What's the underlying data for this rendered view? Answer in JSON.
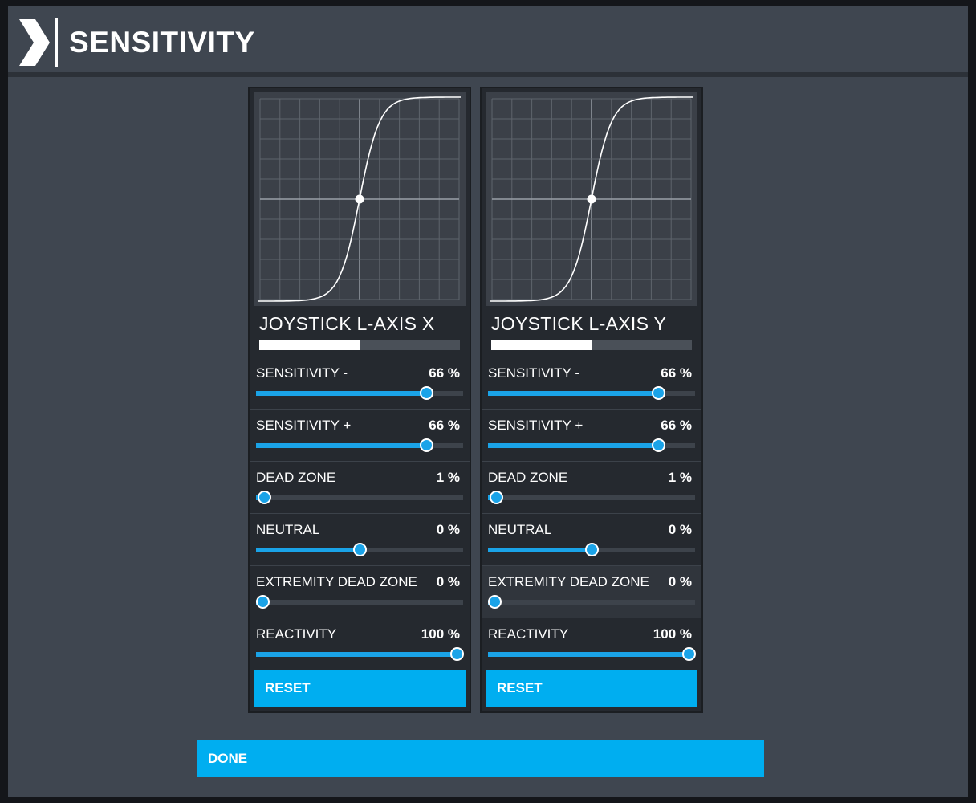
{
  "header": {
    "title": "SENSITIVITY",
    "icon": "chevron-right-icon"
  },
  "panels": [
    {
      "axis_name": "JOYSTICK L-AXIS X",
      "input_level": 0.5,
      "settings": [
        {
          "label": "SENSITIVITY -",
          "value": "66 %",
          "level": 0.82
        },
        {
          "label": "SENSITIVITY +",
          "value": "66 %",
          "level": 0.82
        },
        {
          "label": "DEAD ZONE",
          "value": "1 %",
          "level": 0.04
        },
        {
          "label": "NEUTRAL",
          "value": "0 %",
          "level": 0.5
        },
        {
          "label": "EXTREMITY DEAD ZONE",
          "value": "0 %",
          "level": 0.03
        },
        {
          "label": "REACTIVITY",
          "value": "100 %",
          "level": 1.0
        }
      ],
      "reset_label": "RESET"
    },
    {
      "axis_name": "JOYSTICK L-AXIS Y",
      "input_level": 0.5,
      "settings": [
        {
          "label": "SENSITIVITY -",
          "value": "66 %",
          "level": 0.82
        },
        {
          "label": "SENSITIVITY +",
          "value": "66 %",
          "level": 0.82
        },
        {
          "label": "DEAD ZONE",
          "value": "1 %",
          "level": 0.04
        },
        {
          "label": "NEUTRAL",
          "value": "0 %",
          "level": 0.5
        },
        {
          "label": "EXTREMITY DEAD ZONE",
          "value": "0 %",
          "level": 0.03
        },
        {
          "label": "REACTIVITY",
          "value": "100 %",
          "level": 1.0
        }
      ],
      "reset_label": "RESET"
    }
  ],
  "done_label": "DONE",
  "colors": {
    "accent": "#00aef0",
    "slider": "#1aa3e8",
    "window_bg": "#3f4650",
    "panel_bg": "#25292f"
  }
}
